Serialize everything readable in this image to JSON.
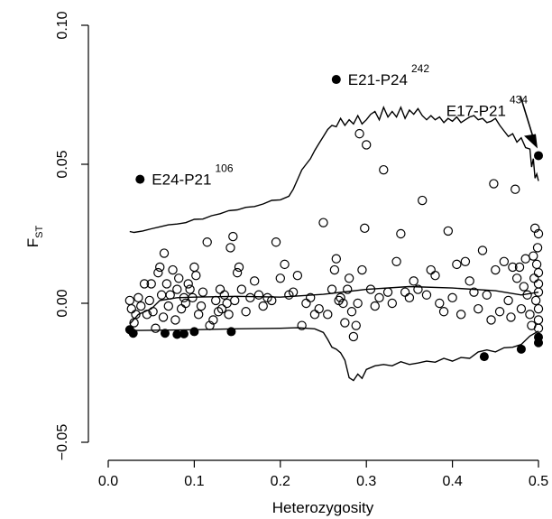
{
  "chart_data": {
    "type": "scatter",
    "xlabel": "Heterozygosity",
    "ylabel_main": "F",
    "ylabel_sub": "ST",
    "xlim": [
      0.0,
      0.5
    ],
    "ylim": [
      -0.05,
      0.1
    ],
    "xticks": [
      {
        "value": 0.0,
        "label": "0.0"
      },
      {
        "value": 0.1,
        "label": "0.1"
      },
      {
        "value": 0.2,
        "label": "0.2"
      },
      {
        "value": 0.3,
        "label": "0.3"
      },
      {
        "value": 0.4,
        "label": "0.4"
      },
      {
        "value": 0.5,
        "label": "0.5"
      }
    ],
    "yticks": [
      {
        "value": -0.05,
        "label": "−0.05"
      },
      {
        "value": 0.0,
        "label": "0.00"
      },
      {
        "value": 0.05,
        "label": "0.05"
      },
      {
        "value": 0.1,
        "label": "0.10"
      }
    ],
    "labeled_points": [
      {
        "x": 0.037,
        "y": 0.0446,
        "name": "E24-P21",
        "superscript": "106"
      },
      {
        "x": 0.265,
        "y": 0.0805,
        "name": "E21-P24",
        "superscript": "242"
      },
      {
        "x": 0.5,
        "y": 0.0531,
        "name": "E17-P21",
        "superscript": "434"
      }
    ],
    "filled_points": [
      [
        0.025,
        -0.0095
      ],
      [
        0.029,
        -0.0108
      ],
      [
        0.066,
        -0.0108
      ],
      [
        0.08,
        -0.0112
      ],
      [
        0.088,
        -0.011
      ],
      [
        0.1,
        -0.0102
      ],
      [
        0.143,
        -0.0102
      ],
      [
        0.437,
        -0.0192
      ],
      [
        0.48,
        -0.0165
      ],
      [
        0.5,
        -0.0142
      ],
      [
        0.5,
        -0.0122
      ]
    ],
    "open_points": [
      [
        0.025,
        0.001
      ],
      [
        0.027,
        -0.002
      ],
      [
        0.03,
        -0.007
      ],
      [
        0.032,
        -0.004
      ],
      [
        0.035,
        0.002
      ],
      [
        0.038,
        -0.001
      ],
      [
        0.042,
        0.007
      ],
      [
        0.045,
        -0.004
      ],
      [
        0.048,
        0.001
      ],
      [
        0.05,
        0.007
      ],
      [
        0.052,
        -0.003
      ],
      [
        0.055,
        -0.009
      ],
      [
        0.058,
        0.011
      ],
      [
        0.06,
        0.013
      ],
      [
        0.062,
        0.003
      ],
      [
        0.064,
        -0.005
      ],
      [
        0.065,
        0.018
      ],
      [
        0.068,
        0.007
      ],
      [
        0.07,
        -0.001
      ],
      [
        0.072,
        0.003
      ],
      [
        0.075,
        0.012
      ],
      [
        0.078,
        -0.006
      ],
      [
        0.08,
        0.005
      ],
      [
        0.082,
        0.009
      ],
      [
        0.085,
        -0.002
      ],
      [
        0.088,
        0.002
      ],
      [
        0.09,
        0.0
      ],
      [
        0.093,
        0.007
      ],
      [
        0.095,
        0.005
      ],
      [
        0.098,
        0.002
      ],
      [
        0.1,
        0.013
      ],
      [
        0.102,
        0.01
      ],
      [
        0.105,
        -0.004
      ],
      [
        0.108,
        -0.001
      ],
      [
        0.11,
        0.004
      ],
      [
        0.115,
        0.022
      ],
      [
        0.118,
        -0.008
      ],
      [
        0.122,
        -0.006
      ],
      [
        0.125,
        0.001
      ],
      [
        0.128,
        -0.003
      ],
      [
        0.13,
        0.005
      ],
      [
        0.132,
        -0.002
      ],
      [
        0.135,
        0.003
      ],
      [
        0.138,
        0.0
      ],
      [
        0.14,
        -0.004
      ],
      [
        0.142,
        0.02
      ],
      [
        0.145,
        0.024
      ],
      [
        0.147,
        0.001
      ],
      [
        0.15,
        0.011
      ],
      [
        0.152,
        0.013
      ],
      [
        0.155,
        0.005
      ],
      [
        0.16,
        -0.003
      ],
      [
        0.165,
        0.002
      ],
      [
        0.17,
        0.008
      ],
      [
        0.175,
        0.003
      ],
      [
        0.18,
        -0.001
      ],
      [
        0.185,
        0.002
      ],
      [
        0.19,
        0.001
      ],
      [
        0.195,
        0.022
      ],
      [
        0.2,
        0.009
      ],
      [
        0.205,
        0.014
      ],
      [
        0.21,
        0.003
      ],
      [
        0.215,
        0.004
      ],
      [
        0.22,
        0.01
      ],
      [
        0.225,
        -0.008
      ],
      [
        0.23,
        0.0
      ],
      [
        0.235,
        0.002
      ],
      [
        0.24,
        -0.004
      ],
      [
        0.245,
        -0.002
      ],
      [
        0.25,
        0.029
      ],
      [
        0.255,
        -0.004
      ],
      [
        0.26,
        0.005
      ],
      [
        0.263,
        0.012
      ],
      [
        0.265,
        0.016
      ],
      [
        0.268,
        0.001
      ],
      [
        0.27,
        0.002
      ],
      [
        0.273,
        0.0
      ],
      [
        0.275,
        -0.007
      ],
      [
        0.278,
        0.005
      ],
      [
        0.28,
        0.009
      ],
      [
        0.283,
        -0.003
      ],
      [
        0.285,
        -0.012
      ],
      [
        0.288,
        -0.008
      ],
      [
        0.29,
        0.0
      ],
      [
        0.292,
        0.061
      ],
      [
        0.295,
        0.012
      ],
      [
        0.298,
        0.027
      ],
      [
        0.3,
        0.057
      ],
      [
        0.305,
        0.005
      ],
      [
        0.31,
        -0.001
      ],
      [
        0.315,
        0.002
      ],
      [
        0.32,
        0.048
      ],
      [
        0.325,
        0.004
      ],
      [
        0.33,
        0.0
      ],
      [
        0.335,
        0.015
      ],
      [
        0.34,
        0.025
      ],
      [
        0.345,
        0.004
      ],
      [
        0.35,
        0.002
      ],
      [
        0.355,
        0.008
      ],
      [
        0.36,
        0.005
      ],
      [
        0.365,
        0.037
      ],
      [
        0.37,
        0.003
      ],
      [
        0.375,
        0.012
      ],
      [
        0.38,
        0.01
      ],
      [
        0.385,
        0.0
      ],
      [
        0.39,
        -0.003
      ],
      [
        0.395,
        0.026
      ],
      [
        0.4,
        0.002
      ],
      [
        0.405,
        0.014
      ],
      [
        0.41,
        -0.004
      ],
      [
        0.415,
        0.015
      ],
      [
        0.42,
        0.008
      ],
      [
        0.425,
        0.004
      ],
      [
        0.43,
        -0.002
      ],
      [
        0.435,
        0.019
      ],
      [
        0.44,
        0.003
      ],
      [
        0.445,
        -0.006
      ],
      [
        0.448,
        0.043
      ],
      [
        0.45,
        0.012
      ],
      [
        0.455,
        -0.003
      ],
      [
        0.46,
        0.015
      ],
      [
        0.465,
        0.001
      ],
      [
        0.468,
        -0.005
      ],
      [
        0.47,
        0.013
      ],
      [
        0.473,
        0.041
      ],
      [
        0.475,
        0.009
      ],
      [
        0.478,
        0.013
      ],
      [
        0.48,
        -0.002
      ],
      [
        0.483,
        0.006
      ],
      [
        0.485,
        0.016
      ],
      [
        0.487,
        0.003
      ],
      [
        0.49,
        -0.004
      ],
      [
        0.492,
        -0.008
      ],
      [
        0.494,
        0.017
      ],
      [
        0.495,
        0.009
      ],
      [
        0.496,
        0.027
      ],
      [
        0.497,
        0.001
      ],
      [
        0.498,
        0.014
      ],
      [
        0.499,
        0.02
      ],
      [
        0.5,
        -0.002
      ],
      [
        0.5,
        0.004
      ],
      [
        0.5,
        0.011
      ],
      [
        0.5,
        0.007
      ],
      [
        0.5,
        0.025
      ],
      [
        0.5,
        -0.006
      ],
      [
        0.5,
        -0.009
      ]
    ],
    "upper_envelope": [
      [
        0.025,
        0.0258
      ],
      [
        0.03,
        0.0255
      ],
      [
        0.04,
        0.026
      ],
      [
        0.05,
        0.0268
      ],
      [
        0.06,
        0.0275
      ],
      [
        0.07,
        0.0282
      ],
      [
        0.08,
        0.0285
      ],
      [
        0.09,
        0.029
      ],
      [
        0.1,
        0.0302
      ],
      [
        0.11,
        0.0303
      ],
      [
        0.12,
        0.0315
      ],
      [
        0.13,
        0.0322
      ],
      [
        0.14,
        0.0333
      ],
      [
        0.15,
        0.0336
      ],
      [
        0.16,
        0.0345
      ],
      [
        0.17,
        0.0348
      ],
      [
        0.18,
        0.0357
      ],
      [
        0.19,
        0.037
      ],
      [
        0.2,
        0.0372
      ],
      [
        0.21,
        0.0385
      ],
      [
        0.215,
        0.041
      ],
      [
        0.22,
        0.0445
      ],
      [
        0.225,
        0.048
      ],
      [
        0.23,
        0.05
      ],
      [
        0.235,
        0.052
      ],
      [
        0.24,
        0.055
      ],
      [
        0.245,
        0.0575
      ],
      [
        0.25,
        0.06
      ],
      [
        0.255,
        0.0625
      ],
      [
        0.26,
        0.064
      ],
      [
        0.265,
        0.0635
      ],
      [
        0.27,
        0.0665
      ],
      [
        0.275,
        0.064
      ],
      [
        0.28,
        0.066
      ],
      [
        0.285,
        0.0645
      ],
      [
        0.29,
        0.0675
      ],
      [
        0.295,
        0.0645
      ],
      [
        0.3,
        0.066
      ],
      [
        0.305,
        0.068
      ],
      [
        0.31,
        0.069
      ],
      [
        0.315,
        0.066
      ],
      [
        0.32,
        0.0705
      ],
      [
        0.325,
        0.067
      ],
      [
        0.33,
        0.069
      ],
      [
        0.335,
        0.067
      ],
      [
        0.34,
        0.0705
      ],
      [
        0.345,
        0.0665
      ],
      [
        0.35,
        0.0695
      ],
      [
        0.355,
        0.068
      ],
      [
        0.36,
        0.07
      ],
      [
        0.365,
        0.0675
      ],
      [
        0.37,
        0.066
      ],
      [
        0.375,
        0.0675
      ],
      [
        0.38,
        0.066
      ],
      [
        0.385,
        0.067
      ],
      [
        0.39,
        0.065
      ],
      [
        0.395,
        0.0665
      ],
      [
        0.4,
        0.0655
      ],
      [
        0.405,
        0.067
      ],
      [
        0.41,
        0.065
      ],
      [
        0.415,
        0.066
      ],
      [
        0.42,
        0.067
      ],
      [
        0.425,
        0.0675
      ],
      [
        0.43,
        0.066
      ],
      [
        0.435,
        0.0665
      ],
      [
        0.44,
        0.065
      ],
      [
        0.445,
        0.0655
      ],
      [
        0.45,
        0.0665
      ],
      [
        0.455,
        0.064
      ],
      [
        0.46,
        0.062
      ],
      [
        0.465,
        0.06
      ],
      [
        0.47,
        0.061
      ],
      [
        0.475,
        0.058
      ],
      [
        0.48,
        0.0595
      ],
      [
        0.485,
        0.056
      ],
      [
        0.49,
        0.0555
      ],
      [
        0.492,
        0.049
      ],
      [
        0.494,
        0.052
      ],
      [
        0.496,
        0.045
      ],
      [
        0.498,
        0.0465
      ],
      [
        0.5,
        0.044
      ]
    ],
    "lower_envelope": [
      [
        0.025,
        -0.0098
      ],
      [
        0.05,
        -0.0097
      ],
      [
        0.1,
        -0.0095
      ],
      [
        0.15,
        -0.0092
      ],
      [
        0.2,
        -0.009
      ],
      [
        0.22,
        -0.0088
      ],
      [
        0.24,
        -0.0092
      ],
      [
        0.25,
        -0.0105
      ],
      [
        0.255,
        -0.013
      ],
      [
        0.26,
        -0.0158
      ],
      [
        0.265,
        -0.0165
      ],
      [
        0.27,
        -0.0178
      ],
      [
        0.275,
        -0.0205
      ],
      [
        0.28,
        -0.0268
      ],
      [
        0.285,
        -0.0278
      ],
      [
        0.29,
        -0.0255
      ],
      [
        0.295,
        -0.027
      ],
      [
        0.3,
        -0.0238
      ],
      [
        0.31,
        -0.0225
      ],
      [
        0.32,
        -0.022
      ],
      [
        0.33,
        -0.0225
      ],
      [
        0.34,
        -0.021
      ],
      [
        0.35,
        -0.022
      ],
      [
        0.36,
        -0.0215
      ],
      [
        0.37,
        -0.0208
      ],
      [
        0.38,
        -0.0212
      ],
      [
        0.39,
        -0.0198
      ],
      [
        0.4,
        -0.0208
      ],
      [
        0.41,
        -0.0195
      ],
      [
        0.42,
        -0.0198
      ],
      [
        0.43,
        -0.0175
      ],
      [
        0.44,
        -0.0168
      ],
      [
        0.45,
        -0.0175
      ],
      [
        0.46,
        -0.016
      ],
      [
        0.47,
        -0.0158
      ],
      [
        0.48,
        -0.0148
      ],
      [
        0.49,
        -0.0118
      ],
      [
        0.5,
        -0.01
      ]
    ],
    "mean_line": [
      [
        0.025,
        -0.0075
      ],
      [
        0.035,
        -0.004
      ],
      [
        0.05,
        -0.002
      ],
      [
        0.06,
        0.001
      ],
      [
        0.08,
        0.002
      ],
      [
        0.1,
        0.0022
      ],
      [
        0.15,
        0.0025
      ],
      [
        0.2,
        0.0022
      ],
      [
        0.25,
        0.0032
      ],
      [
        0.3,
        0.005
      ],
      [
        0.35,
        0.006
      ],
      [
        0.4,
        0.0055
      ],
      [
        0.45,
        0.0045
      ],
      [
        0.48,
        0.003
      ],
      [
        0.5,
        0.004
      ]
    ]
  }
}
